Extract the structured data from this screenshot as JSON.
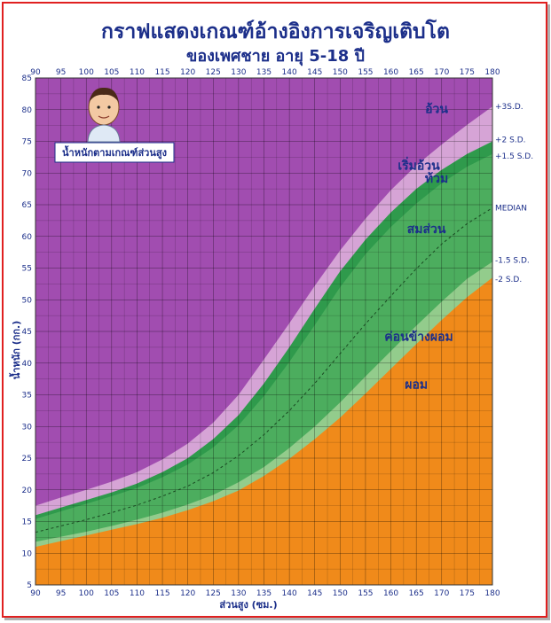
{
  "chart_data": {
    "type": "area",
    "title": "กราฟแสดงเกณฑ์อ้างอิงการเจริญเติบโต",
    "subtitle": "ของเพศชาย อายุ 5-18 ปี",
    "xlabel": "ส่วนสูง (ซม.)",
    "ylabel": "น้ำหนัก (กก.)",
    "xlim": [
      90,
      180
    ],
    "ylim": [
      5,
      85
    ],
    "x_ticks": [
      90,
      95,
      100,
      105,
      110,
      115,
      120,
      125,
      130,
      135,
      140,
      145,
      150,
      155,
      160,
      165,
      170,
      175,
      180
    ],
    "y_ticks": [
      5,
      10,
      15,
      20,
      25,
      30,
      35,
      40,
      45,
      50,
      55,
      60,
      65,
      70,
      75,
      80,
      85
    ],
    "grid": true,
    "x": [
      90,
      95,
      100,
      105,
      110,
      115,
      120,
      125,
      130,
      135,
      140,
      145,
      150,
      155,
      160,
      165,
      170,
      175,
      180
    ],
    "series": [
      {
        "name": "+3S.D.",
        "values": [
          17.5,
          18.8,
          20.0,
          21.3,
          22.8,
          24.8,
          27.3,
          30.6,
          35.0,
          40.6,
          46.3,
          52.2,
          57.8,
          62.8,
          67.3,
          71.2,
          74.5,
          77.6,
          80.5
        ]
      },
      {
        "name": "+2 S.D.",
        "values": [
          16.0,
          17.2,
          18.4,
          19.6,
          21.0,
          22.8,
          25.0,
          28.0,
          31.8,
          36.8,
          42.5,
          48.6,
          54.5,
          59.5,
          63.8,
          67.5,
          70.5,
          73.0,
          75.0
        ]
      },
      {
        "name": "+1.5 S.D.",
        "values": [
          15.4,
          16.6,
          17.8,
          19.0,
          20.3,
          22.0,
          24.0,
          26.7,
          30.2,
          34.8,
          40.2,
          46.0,
          52.0,
          57.2,
          61.5,
          65.2,
          68.4,
          71.0,
          73.0
        ]
      },
      {
        "name": "MEDIAN",
        "values": [
          13.3,
          14.3,
          15.3,
          16.4,
          17.6,
          19.0,
          20.6,
          22.7,
          25.4,
          28.7,
          32.5,
          36.8,
          41.5,
          46.2,
          50.6,
          54.9,
          58.8,
          62.0,
          64.5
        ]
      },
      {
        "name": "-1.5 S.D.",
        "values": [
          11.8,
          12.6,
          13.4,
          14.3,
          15.3,
          16.4,
          17.7,
          19.2,
          21.2,
          23.6,
          26.6,
          30.0,
          33.8,
          37.9,
          41.9,
          45.9,
          49.7,
          53.3,
          56.0
        ]
      },
      {
        "name": "-2 S.D.",
        "values": [
          11.0,
          11.9,
          12.8,
          13.7,
          14.6,
          15.6,
          16.8,
          18.2,
          19.9,
          22.2,
          24.9,
          28.0,
          31.4,
          35.2,
          39.1,
          43.0,
          46.8,
          50.4,
          53.5
        ]
      }
    ],
    "zone_labels": [
      {
        "label": "อ้วน",
        "x": 169,
        "y": 79.5
      },
      {
        "label": "เริ่มอ้วน",
        "x": 165.5,
        "y": 70.5
      },
      {
        "label": "ท้วม",
        "x": 169,
        "y": 68.5
      },
      {
        "label": "สมส่วน",
        "x": 167,
        "y": 60.5
      },
      {
        "label": "ค่อนข้างผอม",
        "x": 165.5,
        "y": 43.5
      },
      {
        "label": "ผอม",
        "x": 165,
        "y": 36
      }
    ],
    "legend": {
      "label": "น้ำหนักตามเกณฑ์ส่วนสูง"
    },
    "colors": {
      "obese": "#a14db0",
      "overweight": "#d6a4d6",
      "plump": "#2f9a4c",
      "normal": "#4cad5e",
      "thin": "#93cc8c",
      "underweight": "#f08a1a",
      "grid": "#000000",
      "text": "#1c2f8a"
    }
  }
}
